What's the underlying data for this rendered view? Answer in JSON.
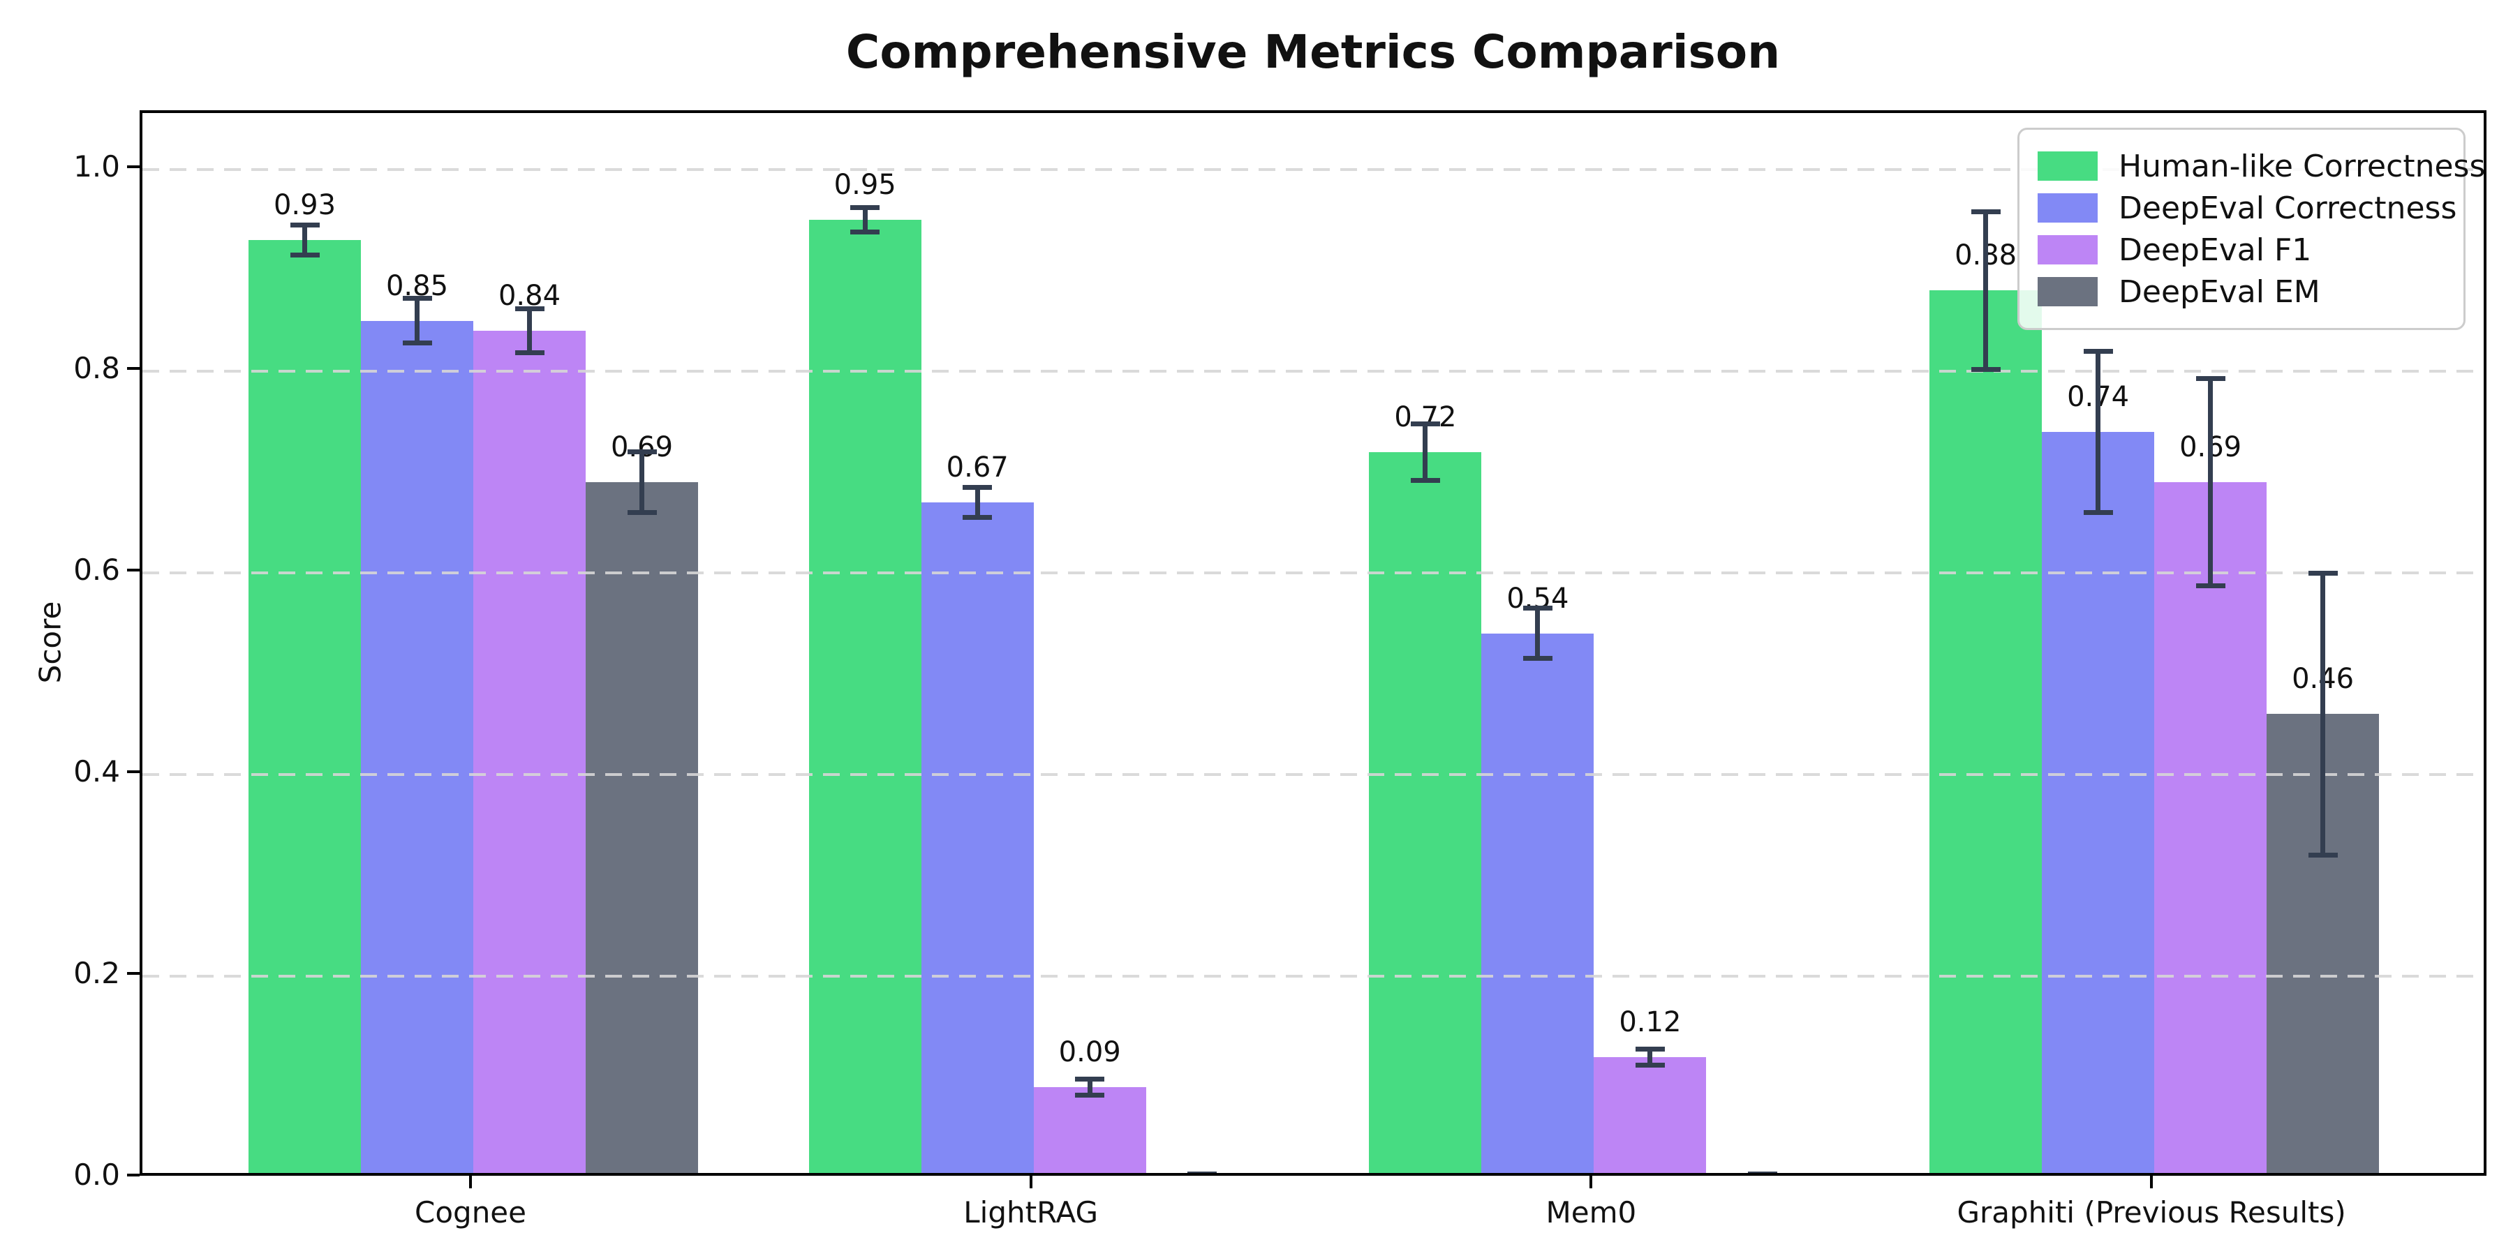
{
  "title": "Comprehensive Metrics Comparison",
  "chart_data": {
    "type": "bar",
    "title": "Comprehensive Metrics Comparison",
    "xlabel": "",
    "ylabel": "Score",
    "categories": [
      "Cognee",
      "LightRAG",
      "Mem0",
      "Graphiti (Previous Results)"
    ],
    "ytick_labels": [
      "0.0",
      "0.2",
      "0.4",
      "0.6",
      "0.8",
      "1.0"
    ],
    "ytick_values": [
      0.0,
      0.2,
      0.4,
      0.6,
      0.8,
      1.0
    ],
    "ylim": [
      0,
      1.056
    ],
    "grid": "horizontal-dashed",
    "grid_color": "#d6d6d6",
    "errorbar_color": "#333e50",
    "legend_position": "upper-right",
    "series": [
      {
        "name": "Human-like Correctness",
        "color": "#47dc82",
        "values": [
          0.93,
          0.95,
          0.72,
          0.88
        ],
        "errors": [
          0.015,
          0.012,
          0.028,
          0.078
        ],
        "labels": [
          "0.93",
          "0.95",
          "0.72",
          "0.88"
        ]
      },
      {
        "name": "DeepEval Correctness",
        "color": "#8289f5",
        "values": [
          0.85,
          0.67,
          0.54,
          0.74
        ],
        "errors": [
          0.022,
          0.015,
          0.025,
          0.08
        ],
        "labels": [
          "0.85",
          "0.67",
          "0.54",
          "0.74"
        ]
      },
      {
        "name": "DeepEval F1",
        "color": "#bd85f5",
        "values": [
          0.84,
          0.09,
          0.12,
          0.69
        ],
        "errors": [
          0.022,
          0.008,
          0.008,
          0.103
        ],
        "labels": [
          "0.84",
          "0.09",
          "0.12",
          "0.69"
        ]
      },
      {
        "name": "DeepEval EM",
        "color": "#6b7280",
        "values": [
          0.69,
          0.0,
          0.0,
          0.46
        ],
        "errors": [
          0.03,
          0.004,
          0.004,
          0.14
        ],
        "labels": [
          "0.69",
          null,
          null,
          "0.46"
        ]
      }
    ]
  }
}
